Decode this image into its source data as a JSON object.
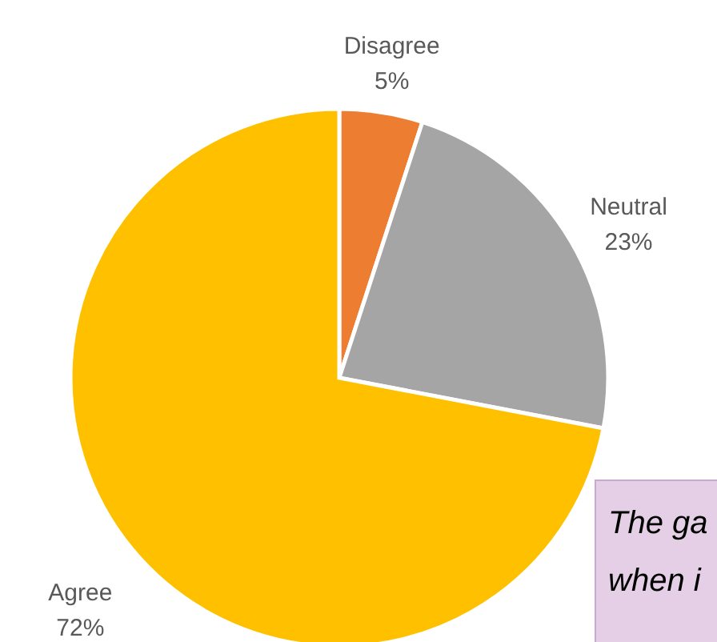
{
  "chart_data": {
    "type": "pie",
    "categories": [
      "Disagree",
      "Neutral",
      "Agree"
    ],
    "values": [
      5,
      23,
      72
    ],
    "colors": [
      "#ed7d31",
      "#a5a5a5",
      "#ffc000"
    ],
    "value_labels": [
      "5%",
      "23%",
      "72%"
    ],
    "annotations": [
      "The ga",
      "when i"
    ]
  }
}
